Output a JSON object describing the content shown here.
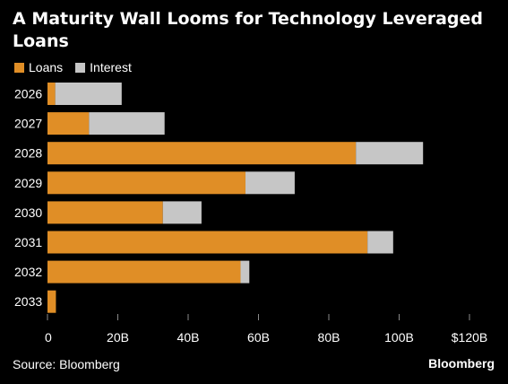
{
  "title": "A Maturity Wall Looms for Technology Leveraged Loans",
  "source": "Source: Bloomberg",
  "brand": "Bloomberg",
  "colors": {
    "loans": "#e08e26",
    "interest": "#c6c6c6",
    "background": "#000000",
    "text": "#ffffff"
  },
  "chart_data": {
    "type": "bar",
    "orientation": "horizontal",
    "stacked": true,
    "categories": [
      "2026",
      "2027",
      "2028",
      "2029",
      "2030",
      "2031",
      "2032",
      "2033"
    ],
    "series": [
      {
        "name": "Loans",
        "values": [
          2.2,
          11.8,
          87.7,
          56.3,
          32.8,
          91.0,
          54.9,
          2.4
        ]
      },
      {
        "name": "Interest",
        "values": [
          18.9,
          21.5,
          19.1,
          14.0,
          11.0,
          7.3,
          2.5,
          0
        ]
      }
    ],
    "xticks": [
      0,
      20,
      40,
      60,
      80,
      100,
      120
    ],
    "xtick_labels": [
      "0",
      "20B",
      "40B",
      "60B",
      "80B",
      "100B",
      "$120B"
    ],
    "xlim": [
      0,
      120
    ],
    "grid": false,
    "legend_position": "top-left"
  }
}
